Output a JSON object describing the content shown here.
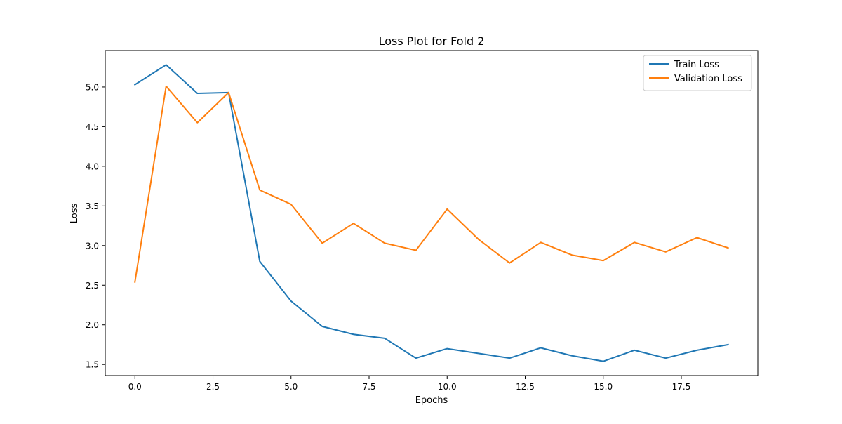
{
  "colors": {
    "train": "#1f77b4",
    "validation": "#ff7f0e",
    "axis": "#000000",
    "background": "#ffffff"
  },
  "chart_data": {
    "type": "line",
    "title": "Loss Plot for Fold 2",
    "xlabel": "Epochs",
    "ylabel": "Loss",
    "xlim": [
      -0.95,
      19.95
    ],
    "ylim": [
      1.36,
      5.46
    ],
    "grid": false,
    "legend_position": "top-right",
    "x_ticks": [
      0.0,
      2.5,
      5.0,
      7.5,
      10.0,
      12.5,
      15.0,
      17.5
    ],
    "x_tick_labels": [
      "0.0",
      "2.5",
      "5.0",
      "7.5",
      "10.0",
      "12.5",
      "15.0",
      "17.5"
    ],
    "y_ticks": [
      1.5,
      2.0,
      2.5,
      3.0,
      3.5,
      4.0,
      4.5,
      5.0
    ],
    "y_tick_labels": [
      "1.5",
      "2.0",
      "2.5",
      "3.0",
      "3.5",
      "4.0",
      "4.5",
      "5.0"
    ],
    "x": [
      0,
      1,
      2,
      3,
      4,
      5,
      6,
      7,
      8,
      9,
      10,
      11,
      12,
      13,
      14,
      15,
      16,
      17,
      18,
      19
    ],
    "series": [
      {
        "name": "Train Loss",
        "color": "#1f77b4",
        "values": [
          5.03,
          5.28,
          4.92,
          4.93,
          2.8,
          2.3,
          1.98,
          1.88,
          1.83,
          1.58,
          1.7,
          1.64,
          1.58,
          1.71,
          1.61,
          1.54,
          1.68,
          1.58,
          1.68,
          1.75
        ]
      },
      {
        "name": "Validation Loss",
        "color": "#ff7f0e",
        "values": [
          2.54,
          5.01,
          4.55,
          4.93,
          3.7,
          3.52,
          3.03,
          3.28,
          3.03,
          2.94,
          3.46,
          3.08,
          2.78,
          3.04,
          2.88,
          2.81,
          3.04,
          2.92,
          3.1,
          2.97
        ]
      }
    ]
  }
}
